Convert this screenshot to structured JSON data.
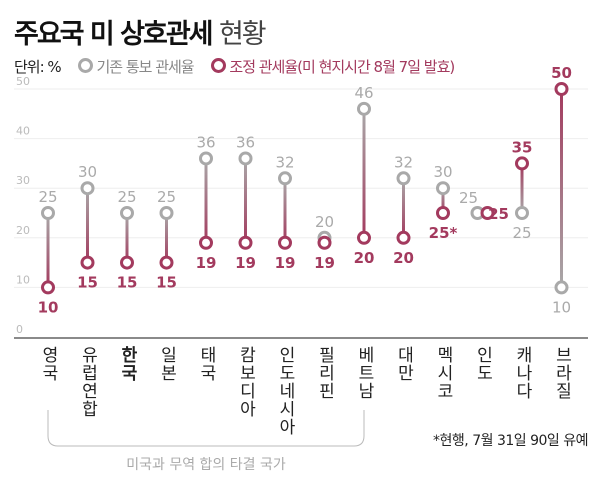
{
  "title": {
    "bold": "주요국 미 상호관세",
    "light": "현황"
  },
  "unit": "단위: %",
  "footnote": "*현행, 7월 31일 90일 유예",
  "bracket_label": "미국과 무역 합의 타결 국가",
  "colors": {
    "original": "#a9a9a9",
    "adjusted": "#a33a5e"
  },
  "chart_data": {
    "type": "dumbbell",
    "ylim": [
      0,
      50
    ],
    "yticks": [
      0,
      10,
      20,
      30,
      40,
      50
    ],
    "grid": true,
    "legend_position": "top-left",
    "categories": [
      "영국",
      "유럽연합",
      "한국",
      "일본",
      "태국",
      "캄보디아",
      "인도네시아",
      "필리핀",
      "베트남",
      "대만",
      "멕시코",
      "인도",
      "캐나다",
      "브라질"
    ],
    "highlight": "한국",
    "series": [
      {
        "name": "기존 통보 관세율",
        "values": [
          25,
          30,
          25,
          25,
          36,
          36,
          32,
          20,
          46,
          32,
          30,
          25,
          25,
          10
        ],
        "labels": [
          "25",
          "30",
          "25",
          "25",
          "36",
          "36",
          "32",
          "20",
          "46",
          "32",
          "30",
          "25",
          "25",
          "10"
        ]
      },
      {
        "name": "조정 관세율(미 현지시간 8월 7일 발효)",
        "values": [
          10,
          15,
          15,
          15,
          19,
          19,
          19,
          19,
          20,
          20,
          25,
          25,
          35,
          50
        ],
        "labels": [
          "10",
          "15",
          "15",
          "15",
          "19",
          "19",
          "19",
          "19",
          "20",
          "20",
          "25*",
          "25",
          "35",
          "50"
        ]
      }
    ],
    "bracket_categories": [
      "영국",
      "베트남"
    ]
  }
}
